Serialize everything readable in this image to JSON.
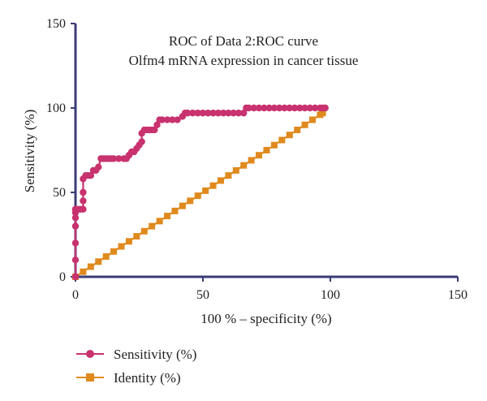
{
  "chart_data": {
    "type": "line",
    "title": "ROC of Data 2:ROC curve",
    "subtitle": "Olfm4 mRNA expression in cancer tissue",
    "xlabel": "100 % – specificity (%)",
    "ylabel": "Sensitivity (%)",
    "xlim": [
      0,
      150
    ],
    "ylim": [
      0,
      150
    ],
    "xticks": [
      0,
      50,
      100,
      150
    ],
    "yticks": [
      0,
      50,
      100,
      150
    ],
    "grid": false,
    "legend_position": "bottom-left",
    "series": [
      {
        "name": "Sensitivity (%)",
        "color": "#c8326e",
        "marker": "circle",
        "x": [
          0,
          0,
          0,
          0,
          0,
          0,
          0,
          0,
          0,
          0,
          1,
          2,
          3,
          3,
          3,
          3,
          4,
          5,
          6,
          7,
          8,
          9,
          10,
          11,
          12,
          13,
          14,
          15,
          17,
          19,
          20,
          21,
          22,
          23,
          24,
          25,
          26,
          26,
          27,
          28,
          29,
          30,
          31,
          32,
          33,
          34,
          36,
          38,
          40,
          42,
          43,
          44,
          46,
          48,
          50,
          52,
          54,
          56,
          58,
          60,
          62,
          64,
          66,
          67,
          68,
          70,
          72,
          74,
          76,
          78,
          80,
          82,
          84,
          86,
          88,
          90,
          92,
          94,
          96,
          97,
          98
        ],
        "y": [
          0,
          10,
          20,
          30,
          35,
          38,
          40,
          40,
          40,
          40,
          40,
          40,
          40,
          45,
          50,
          58,
          60,
          60,
          60,
          63,
          63,
          65,
          70,
          70,
          70,
          70,
          70,
          70,
          70,
          70,
          70,
          72,
          74,
          74,
          76,
          78,
          80,
          85,
          87,
          87,
          87,
          87,
          87,
          90,
          93,
          93,
          93,
          93,
          93,
          95,
          97,
          97,
          97,
          97,
          97,
          97,
          97,
          97,
          97,
          97,
          97,
          97,
          97,
          100,
          100,
          100,
          100,
          100,
          100,
          100,
          100,
          100,
          100,
          100,
          100,
          100,
          100,
          100,
          100,
          100,
          100
        ]
      },
      {
        "name": "Identity (%)",
        "color": "#e08a1e",
        "marker": "square",
        "x": [
          0,
          3,
          6,
          9,
          12,
          15,
          18,
          21,
          24,
          27,
          30,
          33,
          36,
          39,
          42,
          45,
          48,
          51,
          54,
          57,
          60,
          63,
          66,
          69,
          72,
          75,
          78,
          81,
          84,
          87,
          90,
          93,
          96,
          97
        ],
        "y": [
          0,
          3,
          6,
          9,
          12,
          15,
          18,
          21,
          24,
          27,
          30,
          33,
          36,
          39,
          42,
          45,
          48,
          51,
          54,
          57,
          60,
          63,
          66,
          69,
          72,
          75,
          78,
          81,
          84,
          87,
          90,
          93,
          96,
          97
        ]
      }
    ]
  },
  "colors": {
    "axis": "#3b3b78"
  }
}
